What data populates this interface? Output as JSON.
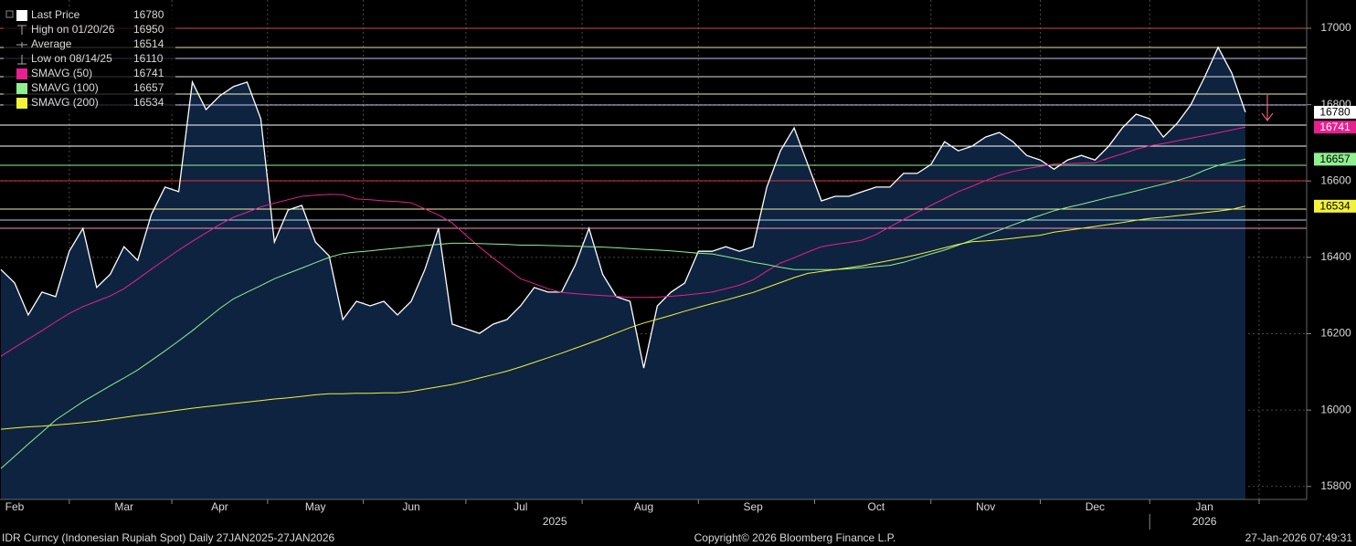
{
  "chart_data": {
    "type": "line",
    "categories": [
      null,
      "Feb",
      null,
      null,
      null,
      null,
      null,
      null,
      null,
      "Mar",
      null,
      null,
      null,
      null,
      null,
      null,
      "Apr",
      null,
      null,
      null,
      null,
      null,
      null,
      "May",
      null,
      null,
      null,
      null,
      null,
      null,
      "Jun",
      null,
      null,
      null,
      null,
      null,
      null,
      null,
      "Jul",
      null,
      null,
      null,
      null,
      null,
      null,
      null,
      null,
      "Aug",
      null,
      null,
      null,
      null,
      null,
      null,
      null,
      "Sep",
      null,
      null,
      null,
      null,
      null,
      null,
      null,
      null,
      "Oct",
      null,
      null,
      null,
      null,
      null,
      null,
      null,
      "Nov",
      null,
      null,
      null,
      null,
      null,
      null,
      null,
      "Dec",
      null,
      null,
      null,
      null,
      null,
      null,
      null,
      "Jan",
      null,
      null,
      null
    ],
    "year_labels": [
      "2025",
      "2026"
    ],
    "series": [
      {
        "name": "Last Price",
        "color": "#ffffff",
        "fill": "#0e2340",
        "values": [
          16368,
          16333,
          16249,
          16309,
          16297,
          16416,
          16476,
          16321,
          16356,
          16428,
          16392,
          16512,
          16584,
          16572,
          16859,
          16787,
          16823,
          16847,
          16859,
          16763,
          16440,
          16524,
          16536,
          16440,
          16404,
          16237,
          16285,
          16273,
          16285,
          16249,
          16285,
          16368,
          16476,
          16225,
          16213,
          16201,
          16225,
          16237,
          16273,
          16321,
          16309,
          16309,
          16380,
          16476,
          16356,
          16297,
          16285,
          16110,
          16273,
          16309,
          16333,
          16416,
          16416,
          16428,
          16416,
          16428,
          16584,
          16679,
          16739,
          16643,
          16548,
          16560,
          16560,
          16572,
          16584,
          16584,
          16620,
          16620,
          16643,
          16703,
          16679,
          16691,
          16715,
          16727,
          16703,
          16667,
          16655,
          16631,
          16655,
          16667,
          16655,
          16691,
          16739,
          16775,
          16763,
          16715,
          16751,
          16799,
          16871,
          16950,
          16883,
          16780
        ]
      },
      {
        "name": "SMAVG (50)",
        "color": "#e8208f",
        "values": [
          16141,
          16164,
          16186,
          16208,
          16231,
          16253,
          16271,
          16285,
          16299,
          16318,
          16343,
          16369,
          16394,
          16419,
          16442,
          16464,
          16486,
          16505,
          16518,
          16532,
          16542,
          16551,
          16560,
          16563,
          16565,
          16564,
          16553,
          16551,
          16548,
          16546,
          16543,
          16527,
          16511,
          16490,
          16458,
          16427,
          16398,
          16371,
          16344,
          16331,
          16318,
          16308,
          16305,
          16302,
          16300,
          16298,
          16295,
          16295,
          16296,
          16298,
          16301,
          16305,
          16309,
          16318,
          16327,
          16341,
          16364,
          16385,
          16399,
          16414,
          16428,
          16434,
          16439,
          16445,
          16460,
          16480,
          16499,
          16518,
          16536,
          16554,
          16572,
          16586,
          16601,
          16615,
          16625,
          16632,
          16638,
          16644,
          16645,
          16647,
          16648,
          16660,
          16671,
          16683,
          16692,
          16698,
          16705,
          16712,
          16719,
          16726,
          16734,
          16741
        ]
      },
      {
        "name": "SMAVG (100)",
        "color": "#8ff08f",
        "values": [
          15847,
          15879,
          15911,
          15942,
          15974,
          15998,
          16022,
          16043,
          16064,
          16084,
          16105,
          16130,
          16155,
          16181,
          16208,
          16237,
          16266,
          16291,
          16309,
          16326,
          16344,
          16358,
          16372,
          16386,
          16400,
          16410,
          16414,
          16417,
          16421,
          16424,
          16428,
          16431,
          16434,
          16437,
          16437,
          16436,
          16435,
          16434,
          16432,
          16432,
          16431,
          16430,
          16429,
          16428,
          16427,
          16425,
          16423,
          16421,
          16419,
          16417,
          16414,
          16411,
          16409,
          16402,
          16395,
          16387,
          16381,
          16374,
          16368,
          16368,
          16368,
          16368,
          16370,
          16373,
          16376,
          16379,
          16387,
          16398,
          16409,
          16419,
          16432,
          16445,
          16458,
          16471,
          16485,
          16498,
          16510,
          16522,
          16531,
          16539,
          16548,
          16557,
          16565,
          16574,
          16583,
          16592,
          16601,
          16612,
          16628,
          16641,
          16649,
          16657
        ]
      },
      {
        "name": "SMAVG (200)",
        "color": "#f2f23a",
        "values": [
          15950,
          15953,
          15956,
          15958,
          15961,
          15964,
          15967,
          15971,
          15976,
          15981,
          15986,
          15990,
          15995,
          16000,
          16005,
          16009,
          16013,
          16017,
          16021,
          16025,
          16029,
          16032,
          16036,
          16040,
          16043,
          16043,
          16044,
          16044,
          16045,
          16045,
          16049,
          16055,
          16061,
          16067,
          16075,
          16084,
          16093,
          16102,
          16113,
          16125,
          16137,
          16149,
          16162,
          16175,
          16188,
          16202,
          16216,
          16228,
          16238,
          16248,
          16259,
          16269,
          16279,
          16288,
          16298,
          16308,
          16321,
          16334,
          16347,
          16358,
          16363,
          16368,
          16373,
          16378,
          16385,
          16392,
          16399,
          16407,
          16416,
          16425,
          16434,
          16441,
          16443,
          16446,
          16450,
          16454,
          16458,
          16466,
          16471,
          16476,
          16481,
          16486,
          16491,
          16497,
          16502,
          16505,
          16509,
          16513,
          16517,
          16521,
          16526,
          16534
        ]
      }
    ],
    "stats": [
      {
        "name": "High on 01/20/26",
        "value": 16950
      },
      {
        "name": "Average",
        "value": 16514
      },
      {
        "name": "Low on 08/14/25",
        "value": 16110
      }
    ],
    "ylim": [
      15766,
      17074
    ],
    "yticks": [
      15800,
      16000,
      16200,
      16400,
      16600,
      16800,
      17000
    ],
    "grid": true,
    "footer": {
      "left": "IDR Curncy (Indonesian Rupiah Spot) Daily 27JAN2025-27JAN2026",
      "center": "Copyright© 2026 Bloomberg Finance L.P.",
      "right": "27-Jan-2026 07:49:31"
    }
  }
}
